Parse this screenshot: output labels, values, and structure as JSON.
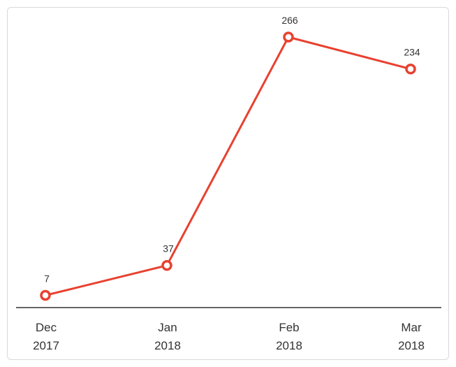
{
  "chart_data": {
    "type": "line",
    "categories": [
      [
        "Dec",
        "2017"
      ],
      [
        "Jan",
        "2018"
      ],
      [
        "Feb",
        "2018"
      ],
      [
        "Mar",
        "2018"
      ]
    ],
    "series": [
      {
        "values": [
          7,
          37,
          266,
          234
        ],
        "color": "#e8412f"
      }
    ],
    "data_labels": [
      "7",
      "37",
      "266",
      "234"
    ],
    "ylim": [
      0,
      266
    ],
    "grid": false,
    "legend": "none",
    "axis_color": "#666666"
  }
}
